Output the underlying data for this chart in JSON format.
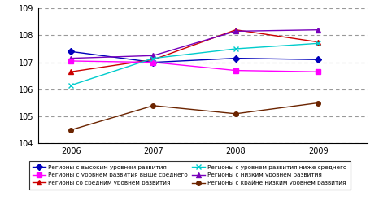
{
  "years": [
    2006,
    2007,
    2008,
    2009
  ],
  "series": [
    {
      "label": "Регионы с высоким уровнем развития",
      "color": "#0000BB",
      "marker": "D",
      "markersize": 4,
      "values": [
        107.4,
        107.0,
        107.15,
        107.1
      ]
    },
    {
      "label": "Регионы со средним уровнем развития",
      "color": "#CC0000",
      "marker": "^",
      "markersize": 5,
      "values": [
        106.65,
        107.1,
        108.2,
        107.75
      ]
    },
    {
      "label": "Регионы с низким уровнем развития",
      "color": "#7700BB",
      "marker": "^",
      "markersize": 5,
      "values": [
        107.15,
        107.25,
        108.15,
        108.2
      ]
    },
    {
      "label": "Регионы с уровнем развития выше среднего",
      "color": "#FF00FF",
      "marker": "s",
      "markersize": 4,
      "values": [
        107.05,
        107.0,
        106.7,
        106.65
      ]
    },
    {
      "label": "Регионы с уровнем развития ниже среднего",
      "color": "#00CCCC",
      "marker": "x",
      "markersize": 5,
      "values": [
        106.15,
        107.15,
        107.5,
        107.7
      ]
    },
    {
      "label": "Регионы с крайне низким уровнем развития",
      "color": "#6B2400",
      "marker": "o",
      "markersize": 4,
      "values": [
        104.5,
        105.4,
        105.1,
        105.5
      ]
    }
  ],
  "ylim": [
    104,
    109
  ],
  "yticks": [
    104,
    105,
    106,
    107,
    108,
    109
  ],
  "xlim": [
    2005.6,
    2009.6
  ],
  "xticks": [
    2006,
    2007,
    2008,
    2009
  ],
  "background_color": "#ffffff",
  "grid_color": "#999999",
  "plot_area_color": "#ffffff",
  "legend_fontsize": 5.2,
  "tick_fontsize": 7,
  "linewidth": 1.0,
  "legend_order": [
    0,
    3,
    1,
    4,
    2,
    5
  ]
}
